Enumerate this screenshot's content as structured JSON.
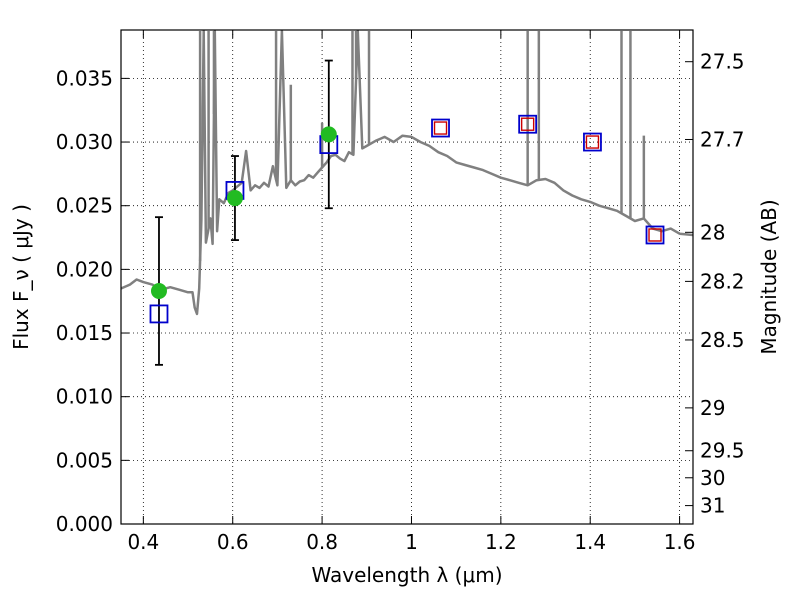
{
  "chart_data": {
    "type": "scatter",
    "xlabel": "Wavelength  λ (μm)",
    "ylabel": "Flux  F_ν  ( μJy )",
    "ylabel_right": "Magnitude (AB)",
    "xlim": [
      0.35,
      1.63
    ],
    "ylim": [
      0.0,
      0.0388
    ],
    "grid": true,
    "x_ticks": [
      0.4,
      0.6,
      0.8,
      1.0,
      1.2,
      1.4,
      1.6
    ],
    "x_tick_labels": [
      "0.4",
      "0.6",
      "0.8",
      "1",
      "1.2",
      "1.4",
      "1.6"
    ],
    "y_ticks": [
      0.0,
      0.005,
      0.01,
      0.015,
      0.02,
      0.025,
      0.03,
      0.035
    ],
    "y_tick_labels": [
      "0.000",
      "0.005",
      "0.010",
      "0.015",
      "0.020",
      "0.025",
      "0.030",
      "0.035"
    ],
    "mag_ticks": [
      27.5,
      27.7,
      28,
      28.2,
      28.5,
      29,
      29.5,
      30,
      31
    ],
    "mag_tick_labels": [
      "27.5",
      "27.7",
      "28",
      "28.2",
      "28.5",
      "29",
      "29.5",
      "30",
      "31"
    ],
    "colors": {
      "spectrum": "#808080",
      "observed": "#22bb22",
      "model_blue": "#0000cc",
      "model_red": "#cc0000",
      "errorbar": "#000000"
    },
    "series": [
      {
        "kind": "spectrum",
        "x": [
          0.35,
          0.37,
          0.385,
          0.4,
          0.42,
          0.44,
          0.46,
          0.48,
          0.5,
          0.51,
          0.515,
          0.52,
          0.525,
          0.53,
          0.535,
          0.54,
          0.545,
          0.55,
          0.555,
          0.56,
          0.565,
          0.57,
          0.58,
          0.59,
          0.6,
          0.61,
          0.62,
          0.63,
          0.64,
          0.65,
          0.66,
          0.67,
          0.68,
          0.69,
          0.7,
          0.71,
          0.72,
          0.73,
          0.74,
          0.75,
          0.76,
          0.77,
          0.78,
          0.79,
          0.8,
          0.81,
          0.82,
          0.83,
          0.84,
          0.85,
          0.86,
          0.87,
          0.88,
          0.89,
          0.9,
          0.92,
          0.94,
          0.96,
          0.98,
          1.0,
          1.02,
          1.04,
          1.06,
          1.08,
          1.1,
          1.12,
          1.14,
          1.16,
          1.18,
          1.2,
          1.22,
          1.24,
          1.26,
          1.28,
          1.3,
          1.32,
          1.34,
          1.36,
          1.38,
          1.4,
          1.42,
          1.44,
          1.46,
          1.48,
          1.5,
          1.52,
          1.54,
          1.56,
          1.58,
          1.6,
          1.63
        ],
        "y": [
          0.0185,
          0.0188,
          0.0192,
          0.019,
          0.0188,
          0.0184,
          0.0186,
          0.0184,
          0.0182,
          0.0182,
          0.017,
          0.0165,
          0.0185,
          0.0239,
          0.039,
          0.0221,
          0.023,
          0.024,
          0.022,
          0.039,
          0.023,
          0.0255,
          0.0252,
          0.026,
          0.0262,
          0.0265,
          0.0268,
          0.0293,
          0.0262,
          0.0266,
          0.0264,
          0.0268,
          0.0265,
          0.0281,
          0.0266,
          0.039,
          0.0264,
          0.027,
          0.0266,
          0.0269,
          0.027,
          0.0274,
          0.0272,
          0.0276,
          0.028,
          0.0284,
          0.0289,
          0.029,
          0.0287,
          0.0285,
          0.0292,
          0.029,
          0.039,
          0.0295,
          0.0297,
          0.0301,
          0.0304,
          0.03,
          0.0305,
          0.0304,
          0.03,
          0.0297,
          0.0292,
          0.0289,
          0.0284,
          0.0282,
          0.028,
          0.0278,
          0.0275,
          0.0272,
          0.027,
          0.0268,
          0.0266,
          0.027,
          0.0271,
          0.0268,
          0.0262,
          0.0258,
          0.0255,
          0.0253,
          0.025,
          0.0248,
          0.0246,
          0.0242,
          0.0238,
          0.024,
          0.0232,
          0.023,
          0.0232,
          0.0228,
          0.0227
        ]
      },
      {
        "kind": "spikes",
        "x": [
          0.527,
          0.546,
          0.558,
          0.697,
          0.73,
          0.8,
          0.868,
          0.876,
          0.905,
          1.26,
          1.285,
          1.47,
          1.49,
          1.52
        ],
        "y_top": [
          0.039,
          0.039,
          0.039,
          0.039,
          0.0345,
          0.0315,
          0.039,
          0.039,
          0.039,
          0.039,
          0.039,
          0.039,
          0.039,
          0.0305
        ]
      },
      {
        "kind": "observed",
        "x": [
          0.435,
          0.605,
          0.815
        ],
        "y": [
          0.0183,
          0.0256,
          0.0306
        ],
        "yerr": [
          0.0058,
          0.0033,
          0.0058
        ]
      },
      {
        "kind": "model",
        "x": [
          0.435,
          0.605,
          0.815,
          1.065,
          1.26,
          1.405,
          1.545
        ],
        "y": [
          0.0165,
          0.0262,
          0.0298,
          0.0311,
          0.0314,
          0.03,
          0.0227
        ],
        "red_inner": [
          false,
          false,
          false,
          true,
          true,
          true,
          true
        ]
      }
    ]
  }
}
